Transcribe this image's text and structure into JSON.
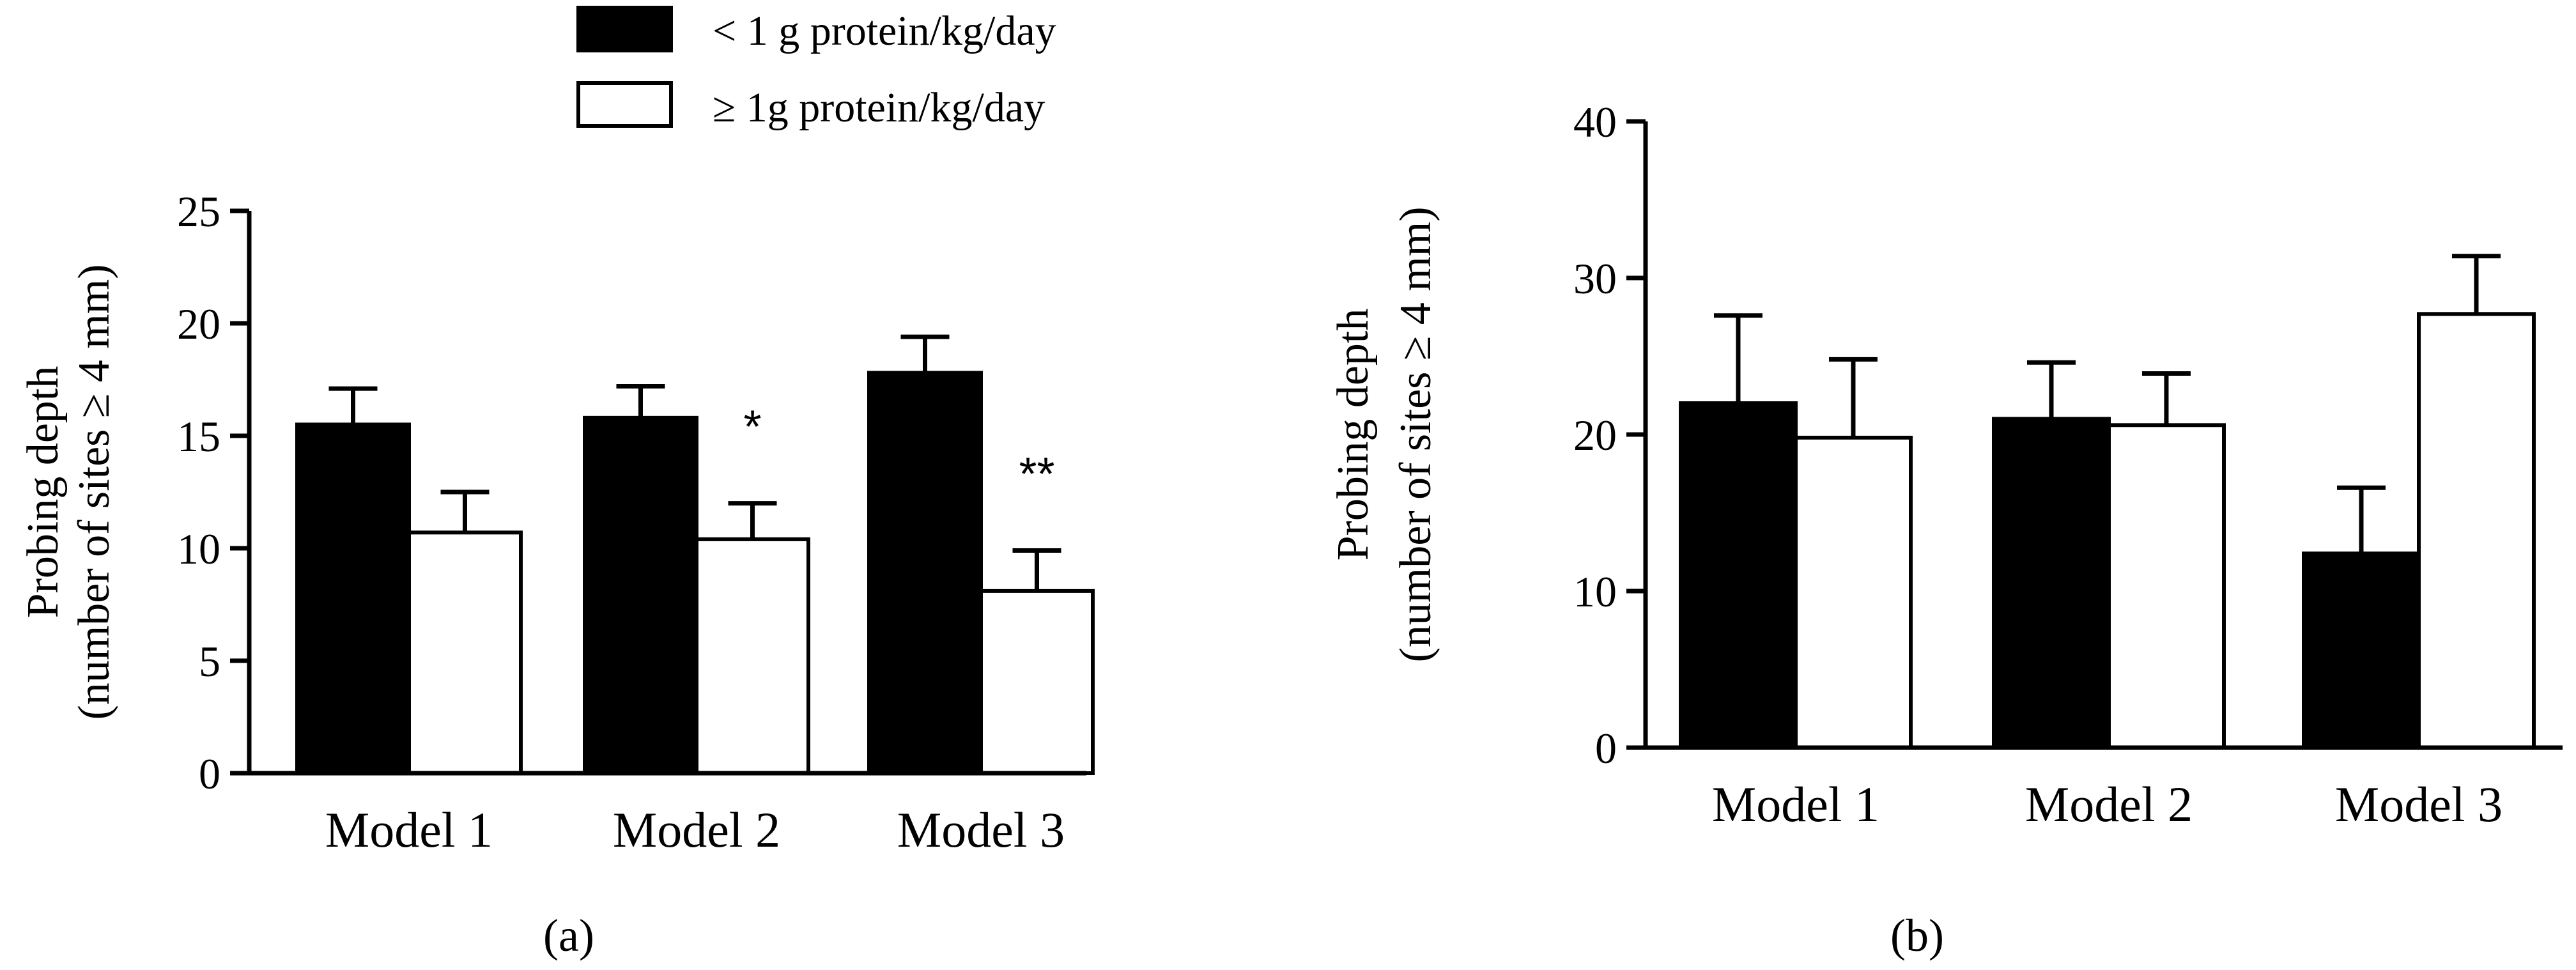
{
  "legend": {
    "items": [
      {
        "label": "< 1 g protein/kg/day",
        "fill": "#000000"
      },
      {
        "label": "≥ 1g protein/kg/day",
        "fill": "#ffffff"
      }
    ]
  },
  "chart_data": [
    {
      "type": "bar",
      "panel_label": "(a)",
      "panel_letter": "a",
      "categories": [
        "Model 1",
        "Model 2",
        "Model 3"
      ],
      "ylabel_line1": "Probing depth",
      "ylabel_line2": "(number of sites ≥ 4 mm)",
      "ylim": [
        0,
        25
      ],
      "yticks": [
        0,
        5,
        10,
        15,
        20,
        25
      ],
      "series": [
        {
          "name": "< 1 g protein/kg/day",
          "values": [
            15.5,
            15.8,
            17.8
          ],
          "errors": [
            1.6,
            1.4,
            1.6
          ]
        },
        {
          "name": "≥ 1g protein/kg/day",
          "values": [
            10.7,
            10.4,
            8.1
          ],
          "errors": [
            1.8,
            1.6,
            1.8
          ]
        }
      ],
      "annotations": [
        "",
        "*",
        "**"
      ]
    },
    {
      "type": "bar",
      "panel_label": "(b)",
      "panel_letter": "b",
      "categories": [
        "Model 1",
        "Model 2",
        "Model 3"
      ],
      "ylabel_line1": "Probing depth",
      "ylabel_line2": "(number of sites ≥ 4 mm)",
      "ylim": [
        0,
        40
      ],
      "yticks": [
        0,
        10,
        20,
        30,
        40
      ],
      "series": [
        {
          "name": "< 1 g protein/kg/day",
          "values": [
            22.0,
            21.0,
            12.4
          ],
          "errors": [
            5.6,
            3.6,
            4.2
          ]
        },
        {
          "name": "≥ 1g protein/kg/day",
          "values": [
            19.8,
            20.6,
            27.7
          ],
          "errors": [
            5.0,
            3.3,
            3.7
          ]
        }
      ],
      "annotations": [
        "",
        "",
        ""
      ]
    }
  ],
  "colors": {
    "dark": "#000000",
    "light": "#ffffff"
  }
}
